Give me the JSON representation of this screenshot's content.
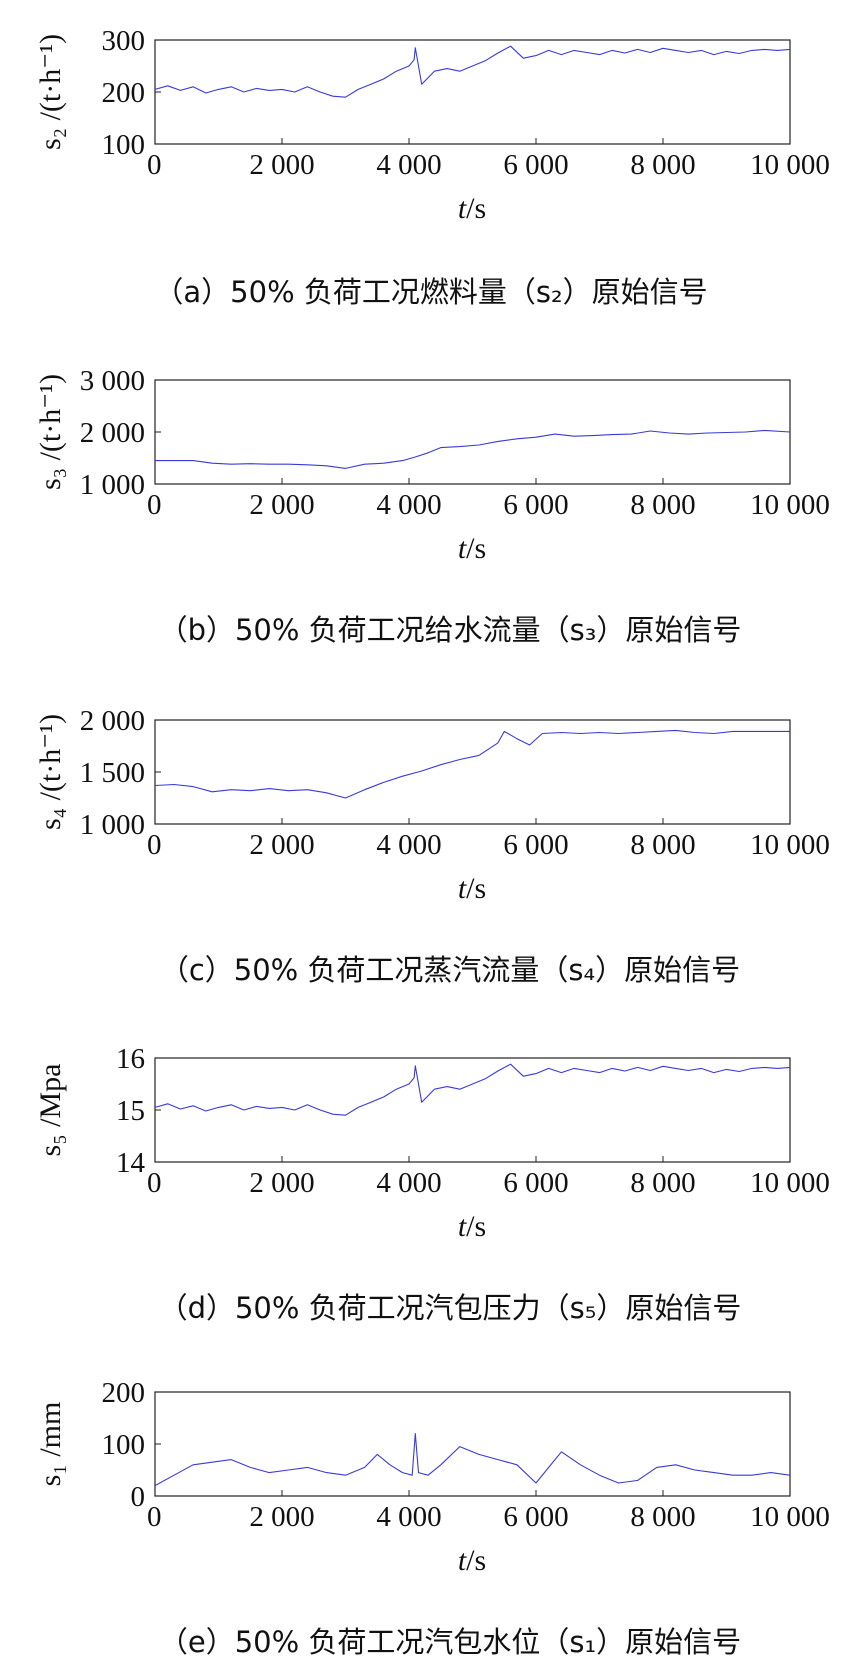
{
  "figure": {
    "line_color": "#3a3ad8",
    "axis_color": "#222222"
  },
  "chart_data": [
    {
      "id": "a",
      "type": "line",
      "title": "（a）50% 负荷工况燃料量（s₂）原始信号",
      "xlabel": "t/s",
      "ylabel": "s₂ /(t·h⁻¹)",
      "xlim": [
        0,
        10000
      ],
      "ylim": [
        100,
        300
      ],
      "xticks": [
        0,
        2000,
        4000,
        6000,
        8000,
        10000
      ],
      "xtick_labels": [
        "0",
        "2 000",
        "4 000",
        "6 000",
        "8 000",
        "10 000"
      ],
      "yticks": [
        100,
        200,
        300
      ],
      "ytick_labels": [
        "100",
        "200",
        "300"
      ],
      "grid": false,
      "x": [
        0,
        200,
        400,
        600,
        800,
        1000,
        1200,
        1400,
        1600,
        1800,
        2000,
        2200,
        2400,
        2600,
        2800,
        3000,
        3200,
        3400,
        3600,
        3800,
        4000,
        4080,
        4100,
        4200,
        4400,
        4600,
        4800,
        5000,
        5200,
        5400,
        5600,
        5800,
        6000,
        6200,
        6400,
        6600,
        6800,
        7000,
        7200,
        7400,
        7600,
        7800,
        8000,
        8200,
        8400,
        8600,
        8800,
        9000,
        9200,
        9400,
        9600,
        9800,
        10000
      ],
      "y": [
        205,
        212,
        203,
        210,
        198,
        205,
        210,
        200,
        207,
        203,
        205,
        200,
        210,
        200,
        192,
        190,
        205,
        215,
        225,
        240,
        250,
        262,
        285,
        215,
        240,
        245,
        240,
        250,
        260,
        275,
        288,
        265,
        270,
        280,
        272,
        280,
        276,
        272,
        280,
        275,
        282,
        276,
        284,
        280,
        276,
        280,
        272,
        278,
        274,
        280,
        282,
        280,
        282
      ]
    },
    {
      "id": "b",
      "type": "line",
      "title": "（b）50% 负荷工况给水流量（s₃）原始信号",
      "xlabel": "t/s",
      "ylabel": "s₃ /(t·h⁻¹)",
      "xlim": [
        0,
        10000
      ],
      "ylim": [
        1000,
        3000
      ],
      "xticks": [
        0,
        2000,
        4000,
        6000,
        8000,
        10000
      ],
      "xtick_labels": [
        "0",
        "2 000",
        "4 000",
        "6 000",
        "8 000",
        "10 000"
      ],
      "yticks": [
        1000,
        2000,
        3000
      ],
      "ytick_labels": [
        "1 000",
        "2 000",
        "3 000"
      ],
      "grid": false,
      "x": [
        0,
        300,
        600,
        900,
        1200,
        1500,
        1800,
        2100,
        2400,
        2700,
        3000,
        3300,
        3600,
        3900,
        4100,
        4300,
        4500,
        4800,
        5100,
        5400,
        5700,
        6000,
        6300,
        6600,
        6900,
        7200,
        7500,
        7800,
        8100,
        8400,
        8700,
        9000,
        9300,
        9600,
        10000
      ],
      "y": [
        1450,
        1450,
        1450,
        1400,
        1380,
        1390,
        1380,
        1380,
        1370,
        1350,
        1300,
        1380,
        1400,
        1450,
        1520,
        1600,
        1700,
        1720,
        1750,
        1820,
        1870,
        1900,
        1960,
        1920,
        1930,
        1950,
        1960,
        2020,
        1980,
        1960,
        1980,
        1990,
        2000,
        2030,
        2000
      ]
    },
    {
      "id": "c",
      "type": "line",
      "title": "（c）50% 负荷工况蒸汽流量（s₄）原始信号",
      "xlabel": "t/s",
      "ylabel": "s₄ /(t·h⁻¹)",
      "xlim": [
        0,
        10000
      ],
      "ylim": [
        1000,
        2000
      ],
      "xticks": [
        0,
        2000,
        4000,
        6000,
        8000,
        10000
      ],
      "xtick_labels": [
        "0",
        "2 000",
        "4 000",
        "6 000",
        "8 000",
        "10 000"
      ],
      "yticks": [
        1000,
        1500,
        2000
      ],
      "ytick_labels": [
        "1 000",
        "1 500",
        "2 000"
      ],
      "grid": false,
      "x": [
        0,
        300,
        600,
        900,
        1200,
        1500,
        1800,
        2100,
        2400,
        2700,
        3000,
        3300,
        3600,
        3900,
        4200,
        4500,
        4800,
        5100,
        5400,
        5500,
        5700,
        5900,
        6100,
        6400,
        6700,
        7000,
        7300,
        7600,
        7900,
        8200,
        8500,
        8800,
        9100,
        9400,
        9700,
        10000
      ],
      "y": [
        1370,
        1380,
        1360,
        1310,
        1330,
        1320,
        1340,
        1320,
        1330,
        1300,
        1250,
        1330,
        1400,
        1460,
        1510,
        1570,
        1620,
        1660,
        1780,
        1890,
        1820,
        1760,
        1870,
        1880,
        1870,
        1880,
        1870,
        1880,
        1890,
        1900,
        1880,
        1870,
        1890,
        1890,
        1890,
        1890
      ]
    },
    {
      "id": "d",
      "type": "line",
      "title": "（d）50% 负荷工况汽包压力（s₅）原始信号",
      "xlabel": "t/s",
      "ylabel": "s₅ /Mpa",
      "xlim": [
        0,
        10000
      ],
      "ylim": [
        14,
        16
      ],
      "xticks": [
        0,
        2000,
        4000,
        6000,
        8000,
        10000
      ],
      "xtick_labels": [
        "0",
        "2 000",
        "4 000",
        "6 000",
        "8 000",
        "10 000"
      ],
      "yticks": [
        14,
        15,
        16
      ],
      "ytick_labels": [
        "14",
        "15",
        "16"
      ],
      "grid": false,
      "x": [
        0,
        200,
        400,
        600,
        800,
        1000,
        1200,
        1400,
        1600,
        1800,
        2000,
        2200,
        2400,
        2600,
        2800,
        3000,
        3200,
        3400,
        3600,
        3800,
        4000,
        4080,
        4100,
        4200,
        4400,
        4600,
        4800,
        5000,
        5200,
        5400,
        5600,
        5800,
        6000,
        6200,
        6400,
        6600,
        6800,
        7000,
        7200,
        7400,
        7600,
        7800,
        8000,
        8200,
        8400,
        8600,
        8800,
        9000,
        9200,
        9400,
        9600,
        9800,
        10000
      ],
      "y": [
        15.05,
        15.12,
        15.02,
        15.08,
        14.98,
        15.05,
        15.1,
        15.0,
        15.07,
        15.03,
        15.05,
        15.0,
        15.1,
        15.0,
        14.92,
        14.9,
        15.05,
        15.15,
        15.25,
        15.4,
        15.5,
        15.62,
        15.85,
        15.15,
        15.4,
        15.45,
        15.4,
        15.5,
        15.6,
        15.75,
        15.88,
        15.65,
        15.7,
        15.8,
        15.72,
        15.8,
        15.76,
        15.72,
        15.8,
        15.75,
        15.82,
        15.76,
        15.84,
        15.8,
        15.76,
        15.8,
        15.72,
        15.78,
        15.74,
        15.8,
        15.82,
        15.8,
        15.82
      ]
    },
    {
      "id": "e",
      "type": "line",
      "title": "（e）50% 负荷工况汽包水位（s₁）原始信号",
      "xlabel": "t/s",
      "ylabel": "s₁ /mm",
      "xlim": [
        0,
        10000
      ],
      "ylim": [
        0,
        200
      ],
      "xticks": [
        0,
        2000,
        4000,
        6000,
        8000,
        10000
      ],
      "xtick_labels": [
        "0",
        "2 000",
        "4 000",
        "6 000",
        "8 000",
        "10 000"
      ],
      "yticks": [
        0,
        100,
        200
      ],
      "ytick_labels": [
        "0",
        "100",
        "200"
      ],
      "grid": false,
      "x": [
        0,
        300,
        600,
        900,
        1200,
        1500,
        1800,
        2100,
        2400,
        2700,
        3000,
        3300,
        3500,
        3700,
        3900,
        4050,
        4100,
        4150,
        4300,
        4500,
        4800,
        5100,
        5400,
        5700,
        6000,
        6200,
        6400,
        6700,
        7000,
        7300,
        7600,
        7900,
        8200,
        8500,
        8800,
        9100,
        9400,
        9700,
        10000
      ],
      "y": [
        20,
        40,
        60,
        65,
        70,
        55,
        45,
        50,
        55,
        45,
        40,
        55,
        80,
        60,
        45,
        40,
        120,
        45,
        40,
        60,
        95,
        80,
        70,
        60,
        25,
        55,
        85,
        60,
        40,
        25,
        30,
        55,
        60,
        50,
        45,
        40,
        40,
        45,
        40
      ]
    }
  ]
}
